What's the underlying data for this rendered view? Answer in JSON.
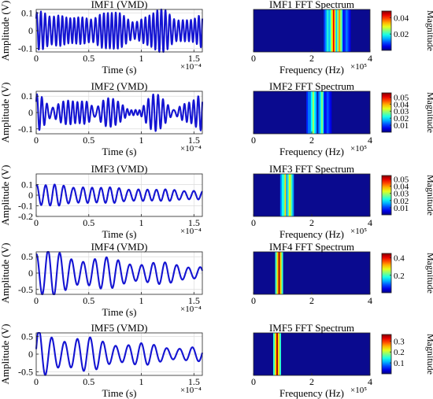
{
  "colors": {
    "wave": "#1414d2",
    "axis": "#262626",
    "grid": "#dcdcdc",
    "jet_background": "#0a0a8f"
  },
  "chart_data": [
    {
      "type": "line",
      "title": "IMF1 (VMD)",
      "xlabel": "Time (s)",
      "ylabel": "Amplitude (V)",
      "x_exponent": "×10⁻⁴",
      "xlim": [
        0,
        1.58
      ],
      "ylim": [
        -0.12,
        0.12
      ],
      "xticks": [
        "0",
        "0.5",
        "1",
        "1.5"
      ],
      "yticks": [
        "0.1",
        "0",
        "-0.1"
      ],
      "signal": {
        "samples": 600,
        "components": [
          {
            "amp": 0.075,
            "cycles": 40,
            "phase": 0.3
          },
          {
            "amp": 0.03,
            "cycles": 44,
            "phase": 1.2
          },
          {
            "amp": 0.02,
            "cycles": 36,
            "phase": 2.0
          }
        ],
        "envelope_decay": 0
      }
    },
    {
      "type": "heatmap",
      "title": "IMF1 FFT Spectrum",
      "xlabel": "Frequency (Hz)",
      "x_exponent": "×10⁵",
      "xlim": [
        0,
        4
      ],
      "xticks": [
        "0",
        "2",
        "4"
      ],
      "colorbar_label": "Magnitude",
      "colorbar_max": 0.048,
      "colorbar_ticks": [
        0.02,
        0.04
      ],
      "colorbar_tick_labels": [
        "0.02",
        "0.04"
      ],
      "peaks": [
        {
          "f": 2.55,
          "mag": 0.02
        },
        {
          "f": 2.75,
          "mag": 0.043
        },
        {
          "f": 2.95,
          "mag": 0.035
        },
        {
          "f": 3.2,
          "mag": 0.012
        }
      ]
    },
    {
      "type": "line",
      "title": "IMF2 (VMD)",
      "xlabel": "Time (s)",
      "ylabel": "Amplitude (V)",
      "x_exponent": "×10⁻⁴",
      "xlim": [
        0,
        1.58
      ],
      "ylim": [
        -0.13,
        0.13
      ],
      "xticks": [
        "0",
        "0.5",
        "1",
        "1.5"
      ],
      "yticks": [
        "0.1",
        "0",
        "-0.1"
      ],
      "signal": {
        "samples": 600,
        "components": [
          {
            "amp": 0.05,
            "cycles": 33,
            "phase": 0.0
          },
          {
            "amp": 0.04,
            "cycles": 37,
            "phase": 0.8
          },
          {
            "amp": 0.025,
            "cycles": 30,
            "phase": 1.7
          }
        ],
        "envelope_decay": 0
      }
    },
    {
      "type": "heatmap",
      "title": "IMF2 FFT Spectrum",
      "xlabel": "Frequency (Hz)",
      "x_exponent": "×10⁵",
      "xlim": [
        0,
        4
      ],
      "xticks": [
        "0",
        "2",
        "4"
      ],
      "colorbar_label": "Magnitude",
      "colorbar_max": 0.056,
      "colorbar_ticks": [
        0.01,
        0.02,
        0.03,
        0.04,
        0.05
      ],
      "colorbar_tick_labels": [
        "0.01",
        "0.02",
        "0.03",
        "0.04",
        "0.05"
      ],
      "peaks": [
        {
          "f": 1.95,
          "mag": 0.02
        },
        {
          "f": 2.05,
          "mag": 0.03
        },
        {
          "f": 2.35,
          "mag": 0.028
        },
        {
          "f": 2.55,
          "mag": 0.012
        }
      ]
    },
    {
      "type": "line",
      "title": "IMF3 (VMD)",
      "xlabel": "Time (s)",
      "ylabel": "Amplitude (V)",
      "x_exponent": "×10⁻⁴",
      "xlim": [
        0,
        1.58
      ],
      "ylim": [
        -0.2,
        0.2
      ],
      "xticks": [
        "0",
        "0.5",
        "1",
        "1.5"
      ],
      "yticks": [
        "0.1",
        "0",
        "-0.1",
        "-0.2"
      ],
      "signal": {
        "samples": 600,
        "components": [
          {
            "amp": 0.1,
            "cycles": 18,
            "phase": 1.4
          },
          {
            "amp": 0.03,
            "cycles": 21,
            "phase": 0.4
          }
        ],
        "envelope_decay": 0.9
      }
    },
    {
      "type": "heatmap",
      "title": "IMF3 FFT Spectrum",
      "xlabel": "Frequency (Hz)",
      "x_exponent": "×10⁵",
      "xlim": [
        0,
        4
      ],
      "xticks": [
        "0",
        "2",
        "4"
      ],
      "colorbar_label": "Magnitude",
      "colorbar_max": 0.055,
      "colorbar_ticks": [
        0.01,
        0.02,
        0.03,
        0.04,
        0.05
      ],
      "colorbar_tick_labels": [
        "0.01",
        "0.02",
        "0.03",
        "0.04",
        "0.05"
      ],
      "peaks": [
        {
          "f": 1.05,
          "mag": 0.03
        },
        {
          "f": 1.15,
          "mag": 0.052
        },
        {
          "f": 1.25,
          "mag": 0.035
        }
      ]
    },
    {
      "type": "line",
      "title": "IMF4 (VMD)",
      "xlabel": "Time (s)",
      "ylabel": "Amplitude (V)",
      "x_exponent": "×10⁻⁴",
      "xlim": [
        0,
        1.58
      ],
      "ylim": [
        -0.65,
        0.65
      ],
      "xticks": [
        "0",
        "0.5",
        "1",
        "1.5"
      ],
      "yticks": [
        "0.5",
        "0",
        "-0.5"
      ],
      "signal": {
        "samples": 600,
        "components": [
          {
            "amp": 0.62,
            "cycles": 14.2,
            "phase": 1.5
          }
        ],
        "envelope_decay": 1.1
      }
    },
    {
      "type": "heatmap",
      "title": "IMF4 FFT Spectrum",
      "xlabel": "",
      "x_exponent": "",
      "xlim": [
        0,
        4
      ],
      "xticks": [
        "0",
        "2",
        "4"
      ],
      "colorbar_label": "Magnitude",
      "colorbar_max": 0.45,
      "colorbar_ticks": [
        0.2,
        0.4
      ],
      "colorbar_tick_labels": [
        "0.2",
        "0.4"
      ],
      "peaks": [
        {
          "f": 0.88,
          "mag": 0.43
        }
      ]
    },
    {
      "type": "line",
      "title": "IMF5 (VMD)",
      "xlabel": "Time (s)",
      "ylabel": "Amplitude (V)",
      "x_exponent": "×10⁻⁴",
      "xlim": [
        0,
        1.58
      ],
      "ylim": [
        -0.6,
        0.6
      ],
      "xticks": [
        "0",
        "0.5",
        "1",
        "1.5"
      ],
      "yticks": [
        "0.5",
        "0",
        "-0.5"
      ],
      "signal": {
        "samples": 600,
        "components": [
          {
            "amp": 0.58,
            "cycles": 13.0,
            "phase": 0.2
          }
        ],
        "envelope_decay": 1.3
      }
    },
    {
      "type": "heatmap",
      "title": "IMF5 FFT Spectrum",
      "xlabel": "Frequency (Hz)",
      "x_exponent": "×10⁵",
      "xlim": [
        0,
        4
      ],
      "xticks": [
        "0",
        "2",
        "4"
      ],
      "colorbar_label": "Magnitude",
      "colorbar_max": 0.36,
      "colorbar_ticks": [
        0.1,
        0.2,
        0.3
      ],
      "colorbar_tick_labels": [
        "0.1",
        "0.2",
        "0.3"
      ],
      "peaks": [
        {
          "f": 0.81,
          "mag": 0.34
        }
      ]
    }
  ]
}
